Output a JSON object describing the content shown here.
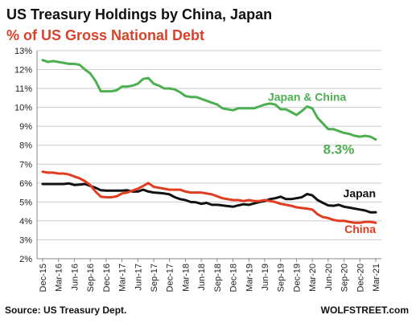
{
  "chart_data": {
    "type": "line",
    "title": "US Treasury Holdings by China, Japan",
    "subtitle": "% of US Gross National Debt",
    "source": "Source: US Treasury Dept.",
    "brand": "WOLFSTREET.com",
    "ylim": [
      2,
      13
    ],
    "yticks": [
      "2%",
      "3%",
      "4%",
      "5%",
      "6%",
      "7%",
      "8%",
      "9%",
      "10%",
      "11%",
      "12%",
      "13%"
    ],
    "xticks": [
      "Dec-15",
      "Mar-16",
      "Jun-16",
      "Sep-16",
      "Dec-16",
      "Mar-17",
      "Jun-17",
      "Sep-17",
      "Dec-17",
      "Mar-18",
      "Jun-18",
      "Sep-18",
      "Dec-18",
      "Mar-19",
      "Jun-19",
      "Sep-19",
      "Dec-19",
      "Mar-20",
      "Jun-20",
      "Sep-20",
      "Dec-20",
      "Mar-21"
    ],
    "grid": true,
    "colors": {
      "title": "#111111",
      "subtitle": "#d9412a",
      "japan_china": "#4caf50",
      "japan": "#111111",
      "china": "#e03c1f",
      "grid": "#cccccc"
    },
    "series": [
      {
        "name": "Japan & China",
        "end_label": "8.3%",
        "x": [
          "2015-12",
          "2016-01",
          "2016-02",
          "2016-03",
          "2016-04",
          "2016-05",
          "2016-06",
          "2016-07",
          "2016-08",
          "2016-09",
          "2016-10",
          "2016-11",
          "2016-12",
          "2017-01",
          "2017-02",
          "2017-03",
          "2017-04",
          "2017-05",
          "2017-06",
          "2017-07",
          "2017-08",
          "2017-09",
          "2017-10",
          "2017-11",
          "2017-12",
          "2018-01",
          "2018-02",
          "2018-03",
          "2018-04",
          "2018-05",
          "2018-06",
          "2018-07",
          "2018-08",
          "2018-09",
          "2018-10",
          "2018-11",
          "2018-12",
          "2019-01",
          "2019-02",
          "2019-03",
          "2019-04",
          "2019-05",
          "2019-06",
          "2019-07",
          "2019-08",
          "2019-09",
          "2019-10",
          "2019-11",
          "2019-12",
          "2020-01",
          "2020-02",
          "2020-03",
          "2020-04",
          "2020-05",
          "2020-06",
          "2020-07",
          "2020-08",
          "2020-09",
          "2020-10",
          "2020-11",
          "2020-12",
          "2021-01",
          "2021-02",
          "2021-03"
        ],
        "values": [
          12.5,
          12.4,
          12.45,
          12.4,
          12.35,
          12.3,
          12.3,
          12.25,
          12.0,
          11.8,
          11.4,
          10.85,
          10.85,
          10.85,
          10.9,
          11.1,
          11.1,
          11.15,
          11.25,
          11.5,
          11.55,
          11.25,
          11.15,
          11.0,
          11.0,
          10.95,
          10.8,
          10.6,
          10.55,
          10.55,
          10.45,
          10.35,
          10.25,
          10.15,
          9.95,
          9.9,
          9.85,
          9.95,
          9.95,
          9.95,
          9.95,
          10.05,
          10.15,
          10.2,
          10.15,
          9.9,
          9.9,
          9.75,
          9.6,
          9.8,
          10.05,
          9.95,
          9.45,
          9.15,
          8.85,
          8.85,
          8.75,
          8.65,
          8.6,
          8.5,
          8.45,
          8.5,
          8.45,
          8.3
        ]
      },
      {
        "name": "Japan",
        "x": [
          "2015-12",
          "2016-01",
          "2016-02",
          "2016-03",
          "2016-04",
          "2016-05",
          "2016-06",
          "2016-07",
          "2016-08",
          "2016-09",
          "2016-10",
          "2016-11",
          "2016-12",
          "2017-01",
          "2017-02",
          "2017-03",
          "2017-04",
          "2017-05",
          "2017-06",
          "2017-07",
          "2017-08",
          "2017-09",
          "2017-10",
          "2017-11",
          "2017-12",
          "2018-01",
          "2018-02",
          "2018-03",
          "2018-04",
          "2018-05",
          "2018-06",
          "2018-07",
          "2018-08",
          "2018-09",
          "2018-10",
          "2018-11",
          "2018-12",
          "2019-01",
          "2019-02",
          "2019-03",
          "2019-04",
          "2019-05",
          "2019-06",
          "2019-07",
          "2019-08",
          "2019-09",
          "2019-10",
          "2019-11",
          "2019-12",
          "2020-01",
          "2020-02",
          "2020-03",
          "2020-04",
          "2020-05",
          "2020-06",
          "2020-07",
          "2020-08",
          "2020-09",
          "2020-10",
          "2020-11",
          "2020-12",
          "2021-01",
          "2021-02",
          "2021-03"
        ],
        "values": [
          5.95,
          5.95,
          5.95,
          5.95,
          5.95,
          5.98,
          5.9,
          5.92,
          5.95,
          5.85,
          5.75,
          5.62,
          5.6,
          5.6,
          5.6,
          5.6,
          5.62,
          5.55,
          5.55,
          5.65,
          5.55,
          5.5,
          5.48,
          5.45,
          5.4,
          5.25,
          5.15,
          5.1,
          5.0,
          4.98,
          4.9,
          4.95,
          4.85,
          4.85,
          4.82,
          4.78,
          4.75,
          4.82,
          4.88,
          4.85,
          4.92,
          5.0,
          5.05,
          5.15,
          5.2,
          5.28,
          5.15,
          5.15,
          5.2,
          5.25,
          5.42,
          5.35,
          5.1,
          4.95,
          4.82,
          4.8,
          4.85,
          4.75,
          4.7,
          4.65,
          4.6,
          4.55,
          4.45,
          4.45
        ]
      },
      {
        "name": "China",
        "x": [
          "2015-12",
          "2016-01",
          "2016-02",
          "2016-03",
          "2016-04",
          "2016-05",
          "2016-06",
          "2016-07",
          "2016-08",
          "2016-09",
          "2016-10",
          "2016-11",
          "2016-12",
          "2017-01",
          "2017-02",
          "2017-03",
          "2017-04",
          "2017-05",
          "2017-06",
          "2017-07",
          "2017-08",
          "2017-09",
          "2017-10",
          "2017-11",
          "2017-12",
          "2018-01",
          "2018-02",
          "2018-03",
          "2018-04",
          "2018-05",
          "2018-06",
          "2018-07",
          "2018-08",
          "2018-09",
          "2018-10",
          "2018-11",
          "2018-12",
          "2019-01",
          "2019-02",
          "2019-03",
          "2019-04",
          "2019-05",
          "2019-06",
          "2019-07",
          "2019-08",
          "2019-09",
          "2019-10",
          "2019-11",
          "2019-12",
          "2020-01",
          "2020-02",
          "2020-03",
          "2020-04",
          "2020-05",
          "2020-06",
          "2020-07",
          "2020-08",
          "2020-09",
          "2020-10",
          "2020-11",
          "2020-12",
          "2021-01",
          "2021-02",
          "2021-03"
        ],
        "values": [
          6.6,
          6.55,
          6.55,
          6.5,
          6.5,
          6.45,
          6.35,
          6.25,
          6.1,
          5.9,
          5.55,
          5.28,
          5.25,
          5.25,
          5.3,
          5.45,
          5.5,
          5.6,
          5.7,
          5.85,
          6.0,
          5.8,
          5.75,
          5.7,
          5.65,
          5.65,
          5.65,
          5.55,
          5.5,
          5.5,
          5.5,
          5.45,
          5.4,
          5.3,
          5.2,
          5.15,
          5.1,
          5.1,
          5.05,
          5.1,
          5.05,
          5.05,
          5.1,
          5.05,
          5.0,
          4.9,
          4.85,
          4.8,
          4.72,
          4.68,
          4.65,
          4.6,
          4.35,
          4.2,
          4.15,
          4.05,
          4.0,
          4.0,
          3.95,
          3.9,
          3.9,
          3.95,
          3.95,
          3.9
        ]
      }
    ]
  }
}
